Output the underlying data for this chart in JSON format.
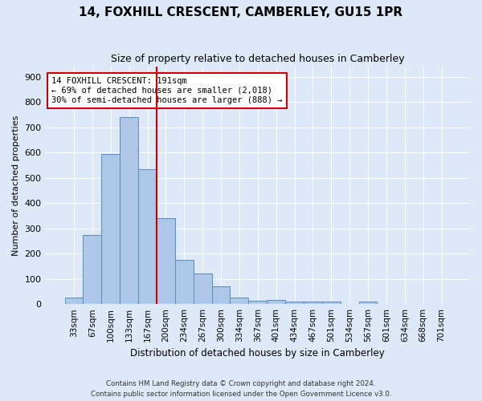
{
  "title": "14, FOXHILL CRESCENT, CAMBERLEY, GU15 1PR",
  "subtitle": "Size of property relative to detached houses in Camberley",
  "xlabel": "Distribution of detached houses by size in Camberley",
  "ylabel": "Number of detached properties",
  "bar_labels": [
    "33sqm",
    "67sqm",
    "100sqm",
    "133sqm",
    "167sqm",
    "200sqm",
    "234sqm",
    "267sqm",
    "300sqm",
    "334sqm",
    "367sqm",
    "401sqm",
    "434sqm",
    "467sqm",
    "501sqm",
    "534sqm",
    "567sqm",
    "601sqm",
    "634sqm",
    "668sqm",
    "701sqm"
  ],
  "bar_heights": [
    27,
    275,
    593,
    740,
    535,
    340,
    175,
    120,
    70,
    25,
    13,
    15,
    10,
    10,
    10,
    0,
    10,
    0,
    0,
    0,
    0
  ],
  "bar_color": "#aec6e8",
  "bar_edge_color": "#5b8db8",
  "bg_color": "#dde8f8",
  "grid_color": "#ffffff",
  "vline_color": "#cc0000",
  "annotation_text": "14 FOXHILL CRESCENT: 191sqm\n← 69% of detached houses are smaller (2,018)\n30% of semi-detached houses are larger (888) →",
  "annotation_box_color": "#ffffff",
  "annotation_box_edge_color": "#cc0000",
  "ylim": [
    0,
    940
  ],
  "yticks": [
    0,
    100,
    200,
    300,
    400,
    500,
    600,
    700,
    800,
    900
  ],
  "footnote1": "Contains HM Land Registry data © Crown copyright and database right 2024.",
  "footnote2": "Contains public sector information licensed under the Open Government Licence v3.0."
}
